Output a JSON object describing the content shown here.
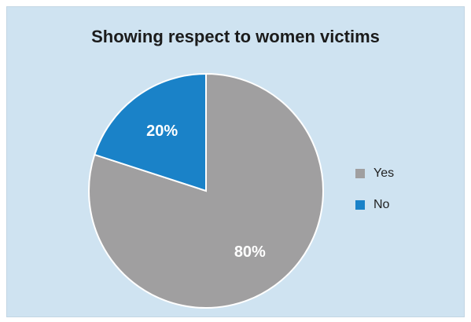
{
  "chart_data": {
    "type": "pie",
    "title": "Showing respect to women victims",
    "slices": [
      {
        "label": "Yes",
        "value": 80,
        "data_label": "80%",
        "color": "#a09fa0"
      },
      {
        "label": "No",
        "value": 20,
        "data_label": "20%",
        "color": "#1a82c8"
      }
    ],
    "start_angle_deg": 0,
    "direction": "clockwise",
    "legend_position": "right"
  },
  "colors": {
    "background": "#cfe3f1",
    "slice_border": "#ffffff"
  }
}
